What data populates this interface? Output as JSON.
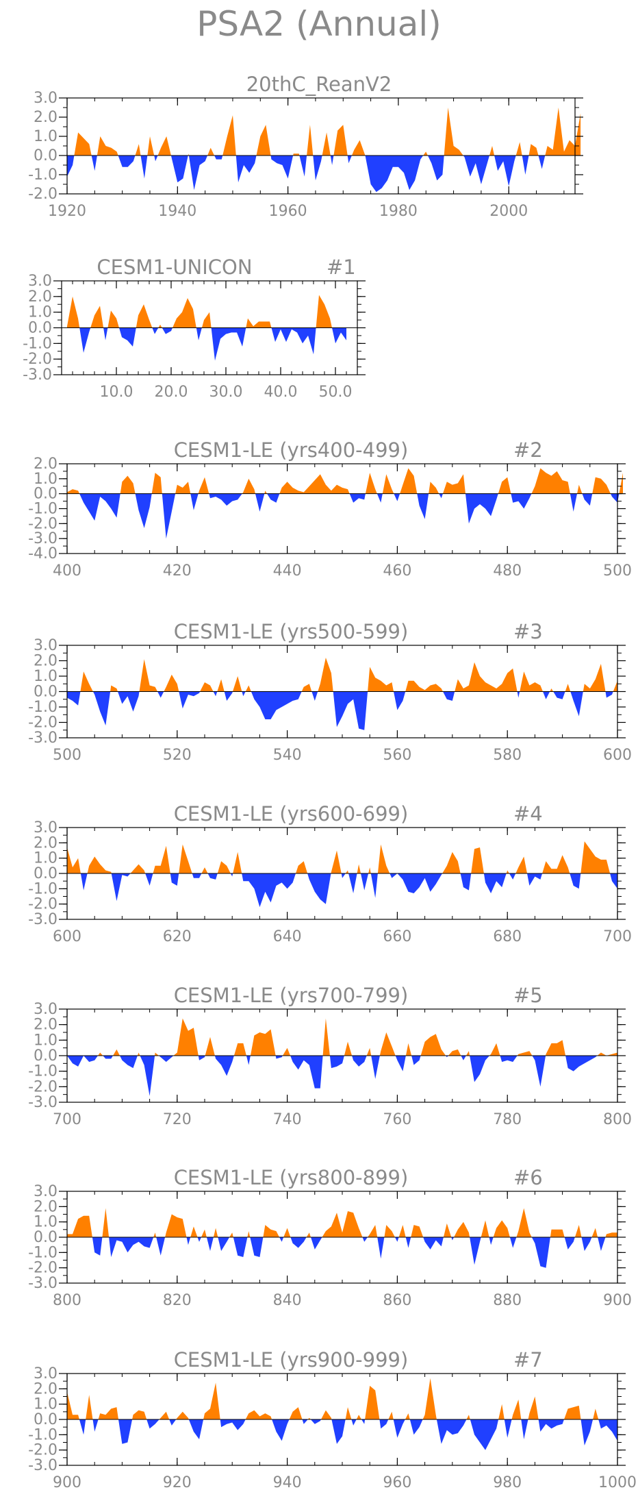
{
  "figure_title": "PSA2 (Annual)",
  "colors": {
    "positive": "#ff8000",
    "negative": "#2040ff",
    "axis": "#000000",
    "text": "#8a8a8a"
  },
  "chart_data": [
    {
      "type": "area",
      "title": "20thC_ReanV2",
      "xlim": [
        1920,
        2012
      ],
      "ylim": [
        -2.0,
        3.0
      ],
      "xticks": [
        1920,
        1940,
        1960,
        1980,
        2000
      ],
      "xtick_labels": [
        "1920",
        "1940",
        "1960",
        "1980",
        "2000"
      ],
      "yticks": [
        -2.0,
        -1.0,
        0.0,
        1.0,
        2.0,
        3.0
      ],
      "ytick_labels": [
        "-2.0",
        "-1.0",
        "0.0",
        "1.0",
        "2.0",
        "3.0"
      ],
      "x_start": 1920,
      "x_step": 1,
      "values": [
        -1.1,
        -0.5,
        1.2,
        0.9,
        0.6,
        -0.8,
        1.0,
        0.5,
        0.4,
        0.2,
        -0.6,
        -0.6,
        -0.3,
        0.6,
        -1.2,
        1.0,
        -0.3,
        0.4,
        1.0,
        -0.2,
        -1.4,
        -1.2,
        0.1,
        -1.8,
        -0.5,
        -0.3,
        0.4,
        -0.2,
        -0.2,
        1.0,
        2.1,
        -1.4,
        -0.5,
        -0.9,
        -0.4,
        1.0,
        1.6,
        -0.2,
        -0.4,
        -0.5,
        -1.2,
        0.1,
        0.1,
        -1.1,
        1.6,
        -1.3,
        -0.3,
        1.2,
        -0.5,
        1.3,
        1.6,
        -0.4,
        0.3,
        0.8,
        0.0,
        -1.5,
        -1.9,
        -1.7,
        -1.3,
        -0.6,
        -0.6,
        -0.9,
        -1.8,
        -1.3,
        -0.2,
        0.2,
        -0.4,
        -1.3,
        -1.0,
        2.5,
        0.5,
        0.3,
        -0.1,
        -1.1,
        -0.4,
        -1.5,
        -0.5,
        0.5,
        -0.8,
        -0.3,
        -1.6,
        -0.3,
        0.7,
        -1.0,
        0.6,
        0.4,
        -0.7,
        0.5,
        0.3,
        2.5,
        0.2,
        0.8,
        0.5,
        2.2
      ]
    },
    {
      "type": "area",
      "title": "CESM1-UNICON",
      "run_label": "#1",
      "xlim": [
        0,
        54
      ],
      "ylim": [
        -3.0,
        3.0
      ],
      "xticks": [
        10,
        20,
        30,
        40,
        50
      ],
      "xtick_labels": [
        "10.0",
        "20.0",
        "30.0",
        "40.0",
        "50.0"
      ],
      "yticks": [
        -3.0,
        -2.0,
        -1.0,
        0.0,
        1.0,
        2.0,
        3.0
      ],
      "ytick_labels": [
        "-3.0",
        "-2.0",
        "-1.0",
        "0.0",
        "1.0",
        "2.0",
        "3.0"
      ],
      "x_start": 1,
      "x_step": 1,
      "values": [
        0.1,
        2.0,
        0.6,
        -1.6,
        -0.3,
        0.8,
        1.4,
        -0.8,
        1.1,
        0.6,
        -0.6,
        -0.8,
        -1.2,
        0.8,
        1.5,
        0.5,
        -0.4,
        0.2,
        -0.4,
        -0.2,
        0.6,
        1.0,
        1.9,
        1.2,
        -0.8,
        0.5,
        1.0,
        -2.1,
        -0.7,
        -0.4,
        -0.3,
        -0.3,
        -1.2,
        0.6,
        0.1,
        0.4,
        0.4,
        0.4,
        -0.9,
        -0.1,
        -0.9,
        -0.1,
        -0.3,
        -1.0,
        -0.5,
        -1.7,
        2.1,
        1.5,
        0.6,
        -1.0,
        -0.3,
        -0.8
      ]
    },
    {
      "type": "area",
      "title": "CESM1-LE (yrs400-499)",
      "run_label": "#2",
      "xlim": [
        400,
        500
      ],
      "ylim": [
        -4.0,
        2.0
      ],
      "xticks": [
        400,
        420,
        440,
        460,
        480,
        500
      ],
      "xtick_labels": [
        "400",
        "420",
        "440",
        "460",
        "480",
        "500"
      ],
      "yticks": [
        -4.0,
        -3.0,
        -2.0,
        -1.0,
        0.0,
        1.0,
        2.0
      ],
      "ytick_labels": [
        "-4.0",
        "-3.0",
        "-2.0",
        "-1.0",
        "0.0",
        "1.0",
        "2.0"
      ],
      "x_start": 400,
      "x_step": 1,
      "values": [
        0.1,
        0.3,
        0.2,
        -0.6,
        -1.2,
        -1.8,
        -0.2,
        -0.5,
        -1.0,
        -1.6,
        0.8,
        1.2,
        0.7,
        -1.1,
        -2.3,
        -0.9,
        1.4,
        1.1,
        -3.0,
        -1.2,
        0.6,
        0.4,
        0.8,
        -1.1,
        0.2,
        1.1,
        -0.3,
        -0.2,
        -0.4,
        -0.8,
        -0.5,
        -0.4,
        0.1,
        1.0,
        0.3,
        -1.2,
        0.2,
        -0.4,
        -0.6,
        0.4,
        0.8,
        0.4,
        0.2,
        0.1,
        0.5,
        0.9,
        1.3,
        0.6,
        0.2,
        0.6,
        0.4,
        0.3,
        -0.6,
        -0.3,
        -0.4,
        1.4,
        0.3,
        -0.6,
        1.3,
        0.3,
        -0.5,
        0.6,
        1.7,
        1.2,
        -0.8,
        -1.7,
        0.8,
        0.4,
        -0.3,
        0.8,
        0.6,
        0.7,
        1.3,
        -2.0,
        -1.0,
        -0.7,
        -1.0,
        -1.5,
        -0.4,
        0.8,
        1.1,
        -0.6,
        -0.5,
        -1.0,
        -0.3,
        0.5,
        1.7,
        1.4,
        1.2,
        1.5,
        0.9,
        0.8,
        -1.2,
        0.6,
        -0.4,
        -0.8,
        1.1,
        1.0,
        0.6,
        -0.2,
        -0.6,
        1.4
      ]
    },
    {
      "type": "area",
      "title": "CESM1-LE (yrs500-599)",
      "run_label": "#3",
      "xlim": [
        500,
        600
      ],
      "ylim": [
        -3.0,
        3.0
      ],
      "xticks": [
        500,
        520,
        540,
        560,
        580,
        600
      ],
      "xtick_labels": [
        "500",
        "520",
        "540",
        "560",
        "580",
        "600"
      ],
      "yticks": [
        -3.0,
        -2.0,
        -1.0,
        0.0,
        1.0,
        2.0,
        3.0
      ],
      "ytick_labels": [
        "-3.0",
        "-2.0",
        "-1.0",
        "0.0",
        "1.0",
        "2.0",
        "3.0"
      ],
      "x_start": 500,
      "x_step": 1,
      "values": [
        -0.4,
        -0.6,
        -0.9,
        1.3,
        0.5,
        -0.2,
        -1.3,
        -2.2,
        0.4,
        0.2,
        -0.8,
        -0.3,
        -1.3,
        -0.3,
        2.1,
        0.4,
        0.3,
        -0.4,
        0.3,
        1.1,
        0.5,
        -1.1,
        -0.2,
        -0.3,
        -0.1,
        0.6,
        0.4,
        -0.3,
        0.8,
        -0.6,
        -0.1,
        1.0,
        -0.3,
        0.4,
        -0.5,
        -1.0,
        -1.8,
        -1.8,
        -1.2,
        -1.0,
        -0.8,
        -0.6,
        -0.5,
        0.3,
        0.5,
        -0.6,
        0.5,
        2.2,
        1.2,
        -2.3,
        -1.6,
        -0.8,
        -0.5,
        -2.4,
        -2.5,
        1.6,
        0.9,
        0.7,
        0.4,
        0.6,
        -1.2,
        -0.6,
        0.7,
        0.7,
        0.3,
        0.1,
        0.4,
        0.5,
        0.2,
        -0.5,
        -0.6,
        0.8,
        0.2,
        0.4,
        1.9,
        1.0,
        0.6,
        0.4,
        0.2,
        0.5,
        1.2,
        1.5,
        -0.4,
        1.3,
        0.4,
        0.6,
        0.4,
        -0.5,
        0.2,
        -0.4,
        -0.5,
        0.5,
        -0.6,
        -1.6,
        0.5,
        0.2,
        0.8,
        1.8,
        -0.4,
        -0.2,
        0.7
      ]
    },
    {
      "type": "area",
      "title": "CESM1-LE (yrs600-699)",
      "run_label": "#4",
      "xlim": [
        600,
        700
      ],
      "ylim": [
        -3.0,
        3.0
      ],
      "xticks": [
        600,
        620,
        640,
        660,
        680,
        700
      ],
      "xtick_labels": [
        "600",
        "620",
        "640",
        "660",
        "680",
        "700"
      ],
      "yticks": [
        -3.0,
        -2.0,
        -1.0,
        0.0,
        1.0,
        2.0,
        3.0
      ],
      "ytick_labels": [
        "-3.0",
        "-2.0",
        "-1.0",
        "0.0",
        "1.0",
        "2.0",
        "3.0"
      ],
      "x_start": 600,
      "x_step": 1,
      "values": [
        1.7,
        0.4,
        1.0,
        -1.1,
        0.5,
        1.1,
        0.6,
        0.2,
        0.1,
        -1.8,
        -0.1,
        -0.2,
        0.2,
        0.6,
        0.2,
        -0.8,
        0.5,
        0.5,
        1.8,
        -0.6,
        -0.8,
        1.9,
        0.8,
        -0.3,
        -0.3,
        0.4,
        -0.3,
        -0.4,
        0.8,
        0.5,
        -0.2,
        1.4,
        -0.5,
        -0.5,
        -1.0,
        -2.2,
        -1.2,
        -1.9,
        -0.8,
        -0.6,
        -1.0,
        -0.6,
        0.5,
        0.8,
        -0.4,
        -1.2,
        -1.7,
        -2.0,
        0.1,
        1.5,
        -0.3,
        0.2,
        -1.3,
        0.6,
        -1.1,
        0.4,
        -1.6,
        1.9,
        0.5,
        -0.3,
        0.0,
        -0.4,
        -1.2,
        -1.3,
        -0.9,
        -0.3,
        -1.2,
        -0.7,
        -0.1,
        0.5,
        1.4,
        0.8,
        -0.9,
        -1.1,
        1.6,
        1.7,
        -0.6,
        -1.3,
        -0.5,
        -0.9,
        0.2,
        -0.4,
        0.4,
        1.1,
        -0.8,
        -0.2,
        -0.4,
        0.8,
        0.3,
        0.3,
        1.2,
        0.4,
        -0.8,
        -1.0,
        2.1,
        1.6,
        1.1,
        0.9,
        0.9,
        -0.5,
        -1.0
      ]
    },
    {
      "type": "area",
      "title": "CESM1-LE (yrs700-799)",
      "run_label": "#5",
      "xlim": [
        700,
        800
      ],
      "ylim": [
        -3.0,
        3.0
      ],
      "xticks": [
        700,
        720,
        740,
        760,
        780,
        800
      ],
      "xtick_labels": [
        "700",
        "720",
        "740",
        "760",
        "780",
        "800"
      ],
      "yticks": [
        -3.0,
        -2.0,
        -1.0,
        0.0,
        1.0,
        2.0,
        3.0
      ],
      "ytick_labels": [
        "-3.0",
        "-2.0",
        "-1.0",
        "0.0",
        "1.0",
        "2.0",
        "3.0"
      ],
      "x_start": 700,
      "x_step": 1,
      "values": [
        0.0,
        -0.5,
        -0.7,
        0.0,
        -0.4,
        -0.3,
        0.2,
        -0.2,
        -0.2,
        0.4,
        -0.3,
        -0.6,
        -0.8,
        0.2,
        -0.6,
        -2.6,
        0.2,
        -0.1,
        -0.4,
        -0.1,
        0.2,
        2.4,
        1.6,
        1.8,
        -0.3,
        -0.1,
        1.2,
        -0.2,
        -0.6,
        -1.3,
        -0.4,
        0.8,
        0.8,
        -0.6,
        1.3,
        1.5,
        1.4,
        1.7,
        -0.2,
        -0.1,
        0.5,
        -0.4,
        -0.9,
        -0.3,
        -0.6,
        -2.1,
        -2.1,
        2.4,
        -0.8,
        -0.7,
        -0.5,
        0.9,
        -0.3,
        -0.7,
        -0.4,
        0.5,
        -1.5,
        0.3,
        1.5,
        0.6,
        -0.3,
        -1.0,
        0.8,
        -0.6,
        -0.3,
        0.9,
        1.2,
        1.4,
        0.4,
        -0.1,
        0.3,
        0.4,
        -0.3,
        0.3,
        -1.7,
        -1.2,
        -0.3,
        0.1,
        0.8,
        -0.4,
        -0.3,
        -0.4,
        0.1,
        0.2,
        0.3,
        -0.3,
        -2.0,
        0.1,
        0.8,
        0.8,
        1.0,
        -0.8,
        -1.0,
        -0.7,
        -0.5,
        -0.3,
        -0.1,
        0.2,
        0.0,
        0.1,
        0.2
      ]
    },
    {
      "type": "area",
      "title": "CESM1-LE (yrs800-899)",
      "run_label": "#6",
      "xlim": [
        800,
        900
      ],
      "ylim": [
        -3.0,
        3.0
      ],
      "xticks": [
        800,
        820,
        840,
        860,
        880,
        900
      ],
      "xtick_labels": [
        "800",
        "820",
        "840",
        "860",
        "880",
        "900"
      ],
      "yticks": [
        -3.0,
        -2.0,
        -1.0,
        0.0,
        1.0,
        2.0,
        3.0
      ],
      "ytick_labels": [
        "-3.0",
        "-2.0",
        "-1.0",
        "0.0",
        "1.0",
        "2.0",
        "3.0"
      ],
      "x_start": 800,
      "x_step": 1,
      "values": [
        0.2,
        0.2,
        1.2,
        1.4,
        1.4,
        -1.0,
        -1.2,
        1.9,
        -1.3,
        -0.2,
        -0.3,
        -1.0,
        -0.5,
        -0.3,
        -0.6,
        -0.7,
        0.3,
        -1.2,
        0.3,
        1.5,
        1.3,
        1.2,
        -0.5,
        0.7,
        -0.3,
        0.5,
        -0.9,
        0.6,
        -0.9,
        -0.3,
        0.3,
        -1.2,
        -1.3,
        0.4,
        -1.2,
        -1.3,
        0.8,
        0.5,
        0.4,
        -0.3,
        0.6,
        -0.4,
        -0.7,
        -0.3,
        0.3,
        -0.8,
        -0.2,
        0.4,
        0.7,
        1.6,
        0.3,
        1.7,
        1.6,
        0.6,
        -0.3,
        0.2,
        0.8,
        -1.4,
        0.8,
        0.4,
        -0.3,
        0.8,
        -0.7,
        0.8,
        0.7,
        -0.3,
        -0.8,
        -0.2,
        -0.6,
        0.9,
        -0.2,
        0.5,
        1.0,
        0.3,
        -1.8,
        -0.3,
        1.1,
        -0.5,
        0.6,
        1.1,
        0.6,
        -0.7,
        0.4,
        1.9,
        0.3,
        -0.4,
        -1.9,
        -2.0,
        0.5,
        0.5,
        0.5,
        -0.8,
        -0.3,
        0.8,
        -0.9,
        -0.3,
        0.6,
        -0.9,
        0.2,
        0.3,
        0.3
      ]
    },
    {
      "type": "area",
      "title": "CESM1-LE (yrs900-999)",
      "run_label": "#7",
      "xlim": [
        900,
        1000
      ],
      "ylim": [
        -3.0,
        3.0
      ],
      "xticks": [
        900,
        920,
        940,
        960,
        980,
        1000
      ],
      "xtick_labels": [
        "900",
        "920",
        "940",
        "960",
        "980",
        "1000"
      ],
      "yticks": [
        -3.0,
        -2.0,
        -1.0,
        0.0,
        1.0,
        2.0,
        3.0
      ],
      "ytick_labels": [
        "-3.0",
        "-2.0",
        "-1.0",
        "0.0",
        "1.0",
        "2.0",
        "3.0"
      ],
      "x_start": 900,
      "x_step": 1,
      "values": [
        1.8,
        0.3,
        0.3,
        -1.0,
        1.6,
        -0.8,
        0.4,
        0.3,
        0.7,
        0.8,
        -1.6,
        -1.5,
        0.3,
        0.6,
        0.5,
        -0.6,
        -0.3,
        0.1,
        0.5,
        -0.4,
        0.1,
        0.5,
        0.1,
        -0.8,
        -1.3,
        0.4,
        0.7,
        2.4,
        -0.5,
        -0.3,
        -0.2,
        -0.7,
        -0.3,
        0.4,
        0.6,
        0.2,
        0.4,
        0.2,
        -0.8,
        -1.4,
        -0.3,
        0.5,
        0.8,
        -0.3,
        0.1,
        -0.3,
        -0.1,
        0.6,
        0.1,
        -1.6,
        -1.1,
        0.8,
        -0.4,
        0.3,
        -0.3,
        2.2,
        1.9,
        -0.6,
        -0.3,
        0.5,
        -1.2,
        -0.3,
        0.4,
        -1.0,
        -0.5,
        0.3,
        2.7,
        0.3,
        -1.6,
        -0.7,
        -1.0,
        -0.9,
        -0.4,
        0.3,
        -1.0,
        -1.5,
        -2.0,
        -1.3,
        -0.6,
        1.0,
        -1.2,
        0.3,
        1.3,
        -1.3,
        0.4,
        1.5,
        -0.8,
        -0.3,
        -0.6,
        -0.4,
        -0.3,
        0.7,
        0.8,
        0.9,
        -1.7,
        -0.8,
        0.7,
        -0.6,
        -0.4,
        -0.8,
        -1.4
      ]
    }
  ]
}
